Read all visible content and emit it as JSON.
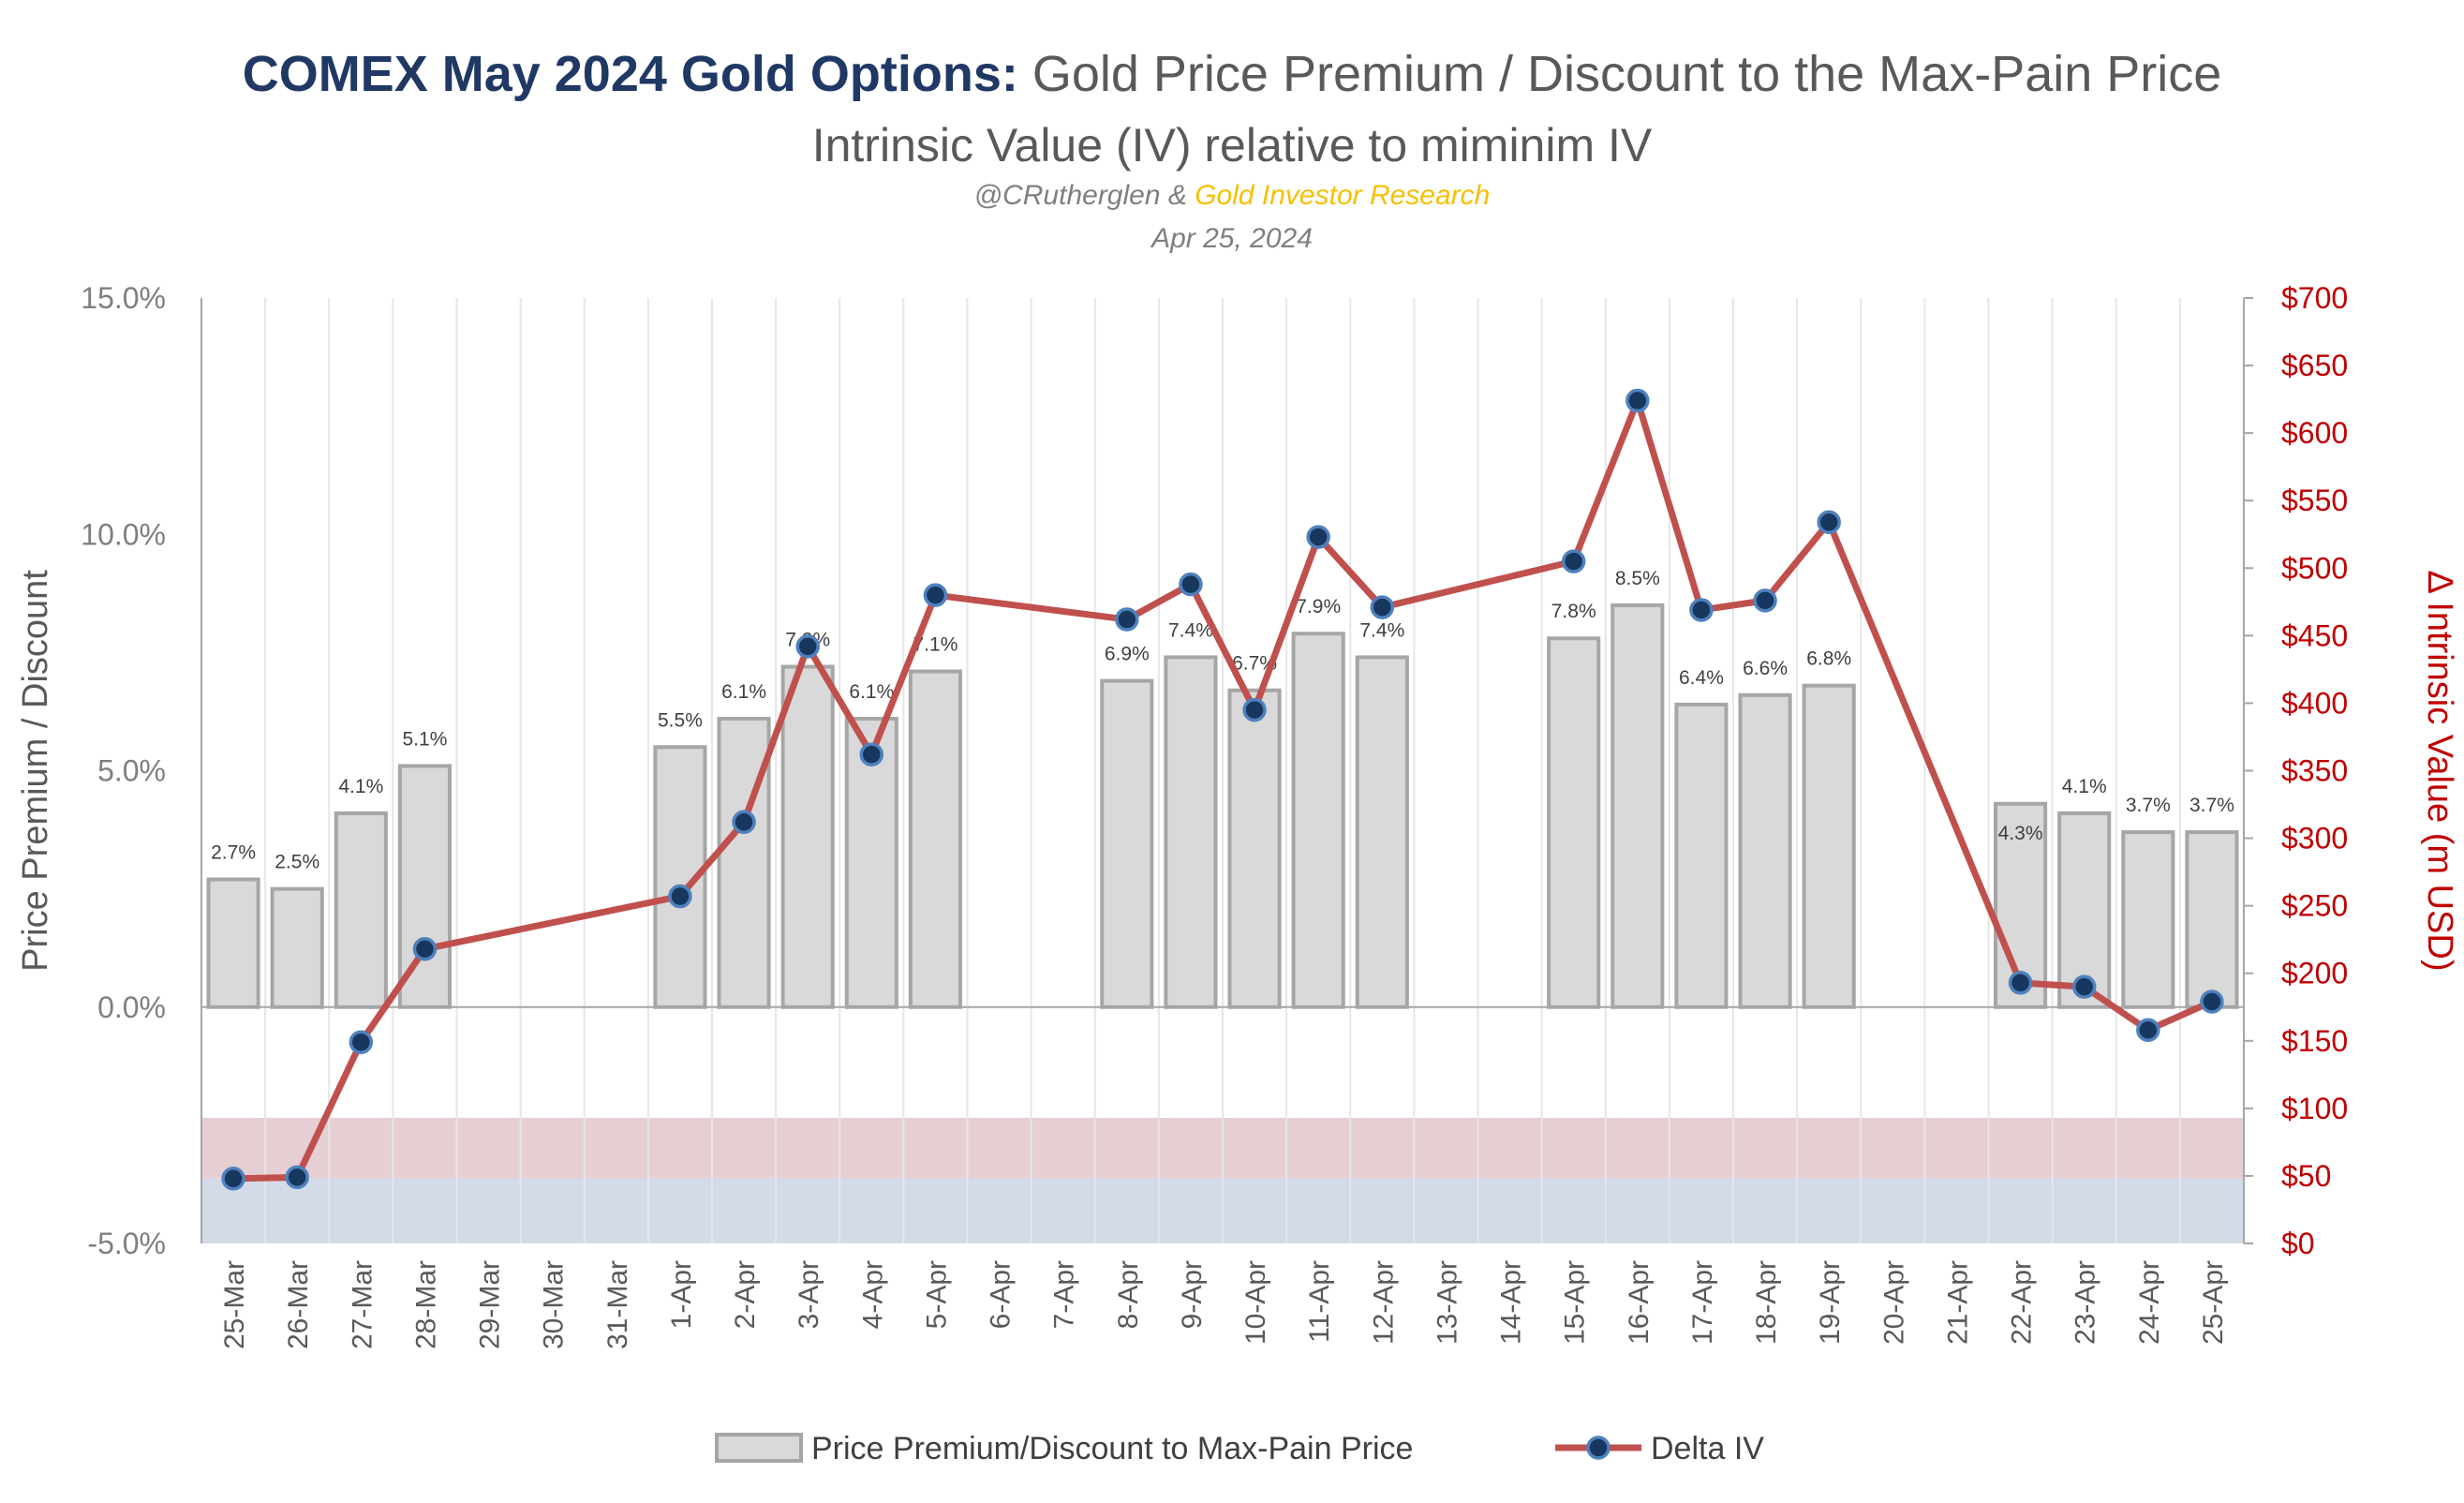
{
  "header": {
    "title_bold": "COMEX May 2024 Gold Options:",
    "title_rest": " Gold Price Premium / Discount to the Max-Pain Price",
    "subtitle": "Intrinsic Value (IV) relative to miminim IV",
    "credit_prefix": "@CRutherglen & ",
    "credit_gold": "Gold Investor Research",
    "date": "Apr 25, 2024"
  },
  "colors": {
    "bar_fill": "#d9d9d9",
    "bar_stroke": "#a6a6a6",
    "line": "#c0504d",
    "marker_fill": "#17375e",
    "marker_stroke": "#4f81bd",
    "band_red": "#e6cfd2",
    "band_blue": "#d3dbe8",
    "right_axis": "#c00000",
    "title_blue": "#1f3864",
    "credit_gold": "#f5c000"
  },
  "chart_data": {
    "type": "bar",
    "categories": [
      "25-Mar",
      "26-Mar",
      "27-Mar",
      "28-Mar",
      "29-Mar",
      "30-Mar",
      "31-Mar",
      "1-Apr",
      "2-Apr",
      "3-Apr",
      "4-Apr",
      "5-Apr",
      "6-Apr",
      "7-Apr",
      "8-Apr",
      "9-Apr",
      "10-Apr",
      "11-Apr",
      "12-Apr",
      "13-Apr",
      "14-Apr",
      "15-Apr",
      "16-Apr",
      "17-Apr",
      "18-Apr",
      "19-Apr",
      "20-Apr",
      "21-Apr",
      "22-Apr",
      "23-Apr",
      "24-Apr",
      "25-Apr"
    ],
    "series": [
      {
        "name": "Price Premium/Discount to Max-Pain Price",
        "type": "bar",
        "axis": "left",
        "values": [
          2.7,
          2.5,
          4.1,
          5.1,
          null,
          null,
          null,
          5.5,
          6.1,
          7.2,
          6.1,
          7.1,
          null,
          null,
          6.9,
          7.4,
          6.7,
          7.9,
          7.4,
          null,
          null,
          7.8,
          8.5,
          6.4,
          6.6,
          6.8,
          null,
          null,
          4.3,
          4.1,
          3.7,
          3.7
        ],
        "labels": [
          "2.7%",
          "2.5%",
          "4.1%",
          "5.1%",
          "",
          "",
          "",
          "5.5%",
          "6.1%",
          "7.2%",
          "6.1%",
          "7.1%",
          "",
          "",
          "6.9%",
          "7.4%",
          "6.7%",
          "7.9%",
          "7.4%",
          "",
          "",
          "7.8%",
          "8.5%",
          "6.4%",
          "6.6%",
          "6.8%",
          "",
          "",
          "4.3%",
          "4.1%",
          "3.7%",
          "3.7%"
        ]
      },
      {
        "name": "Delta IV",
        "type": "line",
        "axis": "right",
        "values": [
          48,
          49,
          149,
          218,
          null,
          null,
          null,
          257,
          312,
          442,
          362,
          480,
          null,
          null,
          462,
          488,
          395,
          523,
          471,
          null,
          null,
          505,
          624,
          469,
          476,
          534,
          null,
          null,
          193,
          190,
          158,
          179
        ]
      }
    ],
    "y_left": {
      "label": "Price Premium / Discount",
      "range": [
        -5,
        15
      ],
      "ticks": [
        -5,
        0,
        5,
        10,
        15
      ],
      "tick_labels": [
        "-5.0%",
        "0.0%",
        "5.0%",
        "10.0%",
        "15.0%"
      ]
    },
    "y_right": {
      "label": "Δ Intrinsic Value (m USD)",
      "range": [
        0,
        700
      ],
      "ticks": [
        0,
        50,
        100,
        150,
        200,
        250,
        300,
        350,
        400,
        450,
        500,
        550,
        600,
        650,
        700
      ],
      "tick_labels": [
        "$0",
        "$50",
        "$100",
        "$150",
        "$200",
        "$250",
        "$300",
        "$350",
        "$400",
        "$450",
        "$500",
        "$550",
        "$600",
        "$650",
        "$700"
      ]
    },
    "bands": [
      {
        "axis": "right",
        "from": 0,
        "to": 48,
        "color": "blue"
      },
      {
        "axis": "right",
        "from": 48,
        "to": 93,
        "color": "red"
      }
    ],
    "grid": "vertical",
    "legend": "bottom"
  }
}
